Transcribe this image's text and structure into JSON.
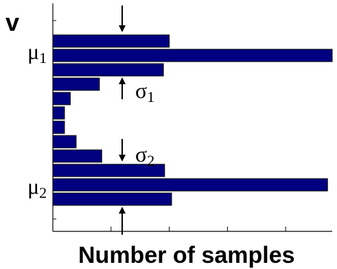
{
  "chart_data": {
    "type": "bar",
    "orientation": "horizontal",
    "ylabel": "v",
    "xlabel": "Number of samples",
    "grid": false,
    "legend": "none",
    "bar_color": "#000080",
    "xlim": [
      0,
      24
    ],
    "x_ticks": [
      5,
      10,
      15,
      20
    ],
    "values": [
      10,
      24,
      9.5,
      4,
      1.5,
      1,
      1,
      2,
      4.2,
      9.6,
      23.6,
      10.2
    ],
    "annotations": [
      {
        "symbol": "μ",
        "sub": "1",
        "at_bar": 1,
        "kind": "label"
      },
      {
        "symbol": "σ",
        "sub": "1",
        "at_bar": 2,
        "kind": "label"
      },
      {
        "symbol": "σ",
        "sub": "2",
        "at_bar": 9,
        "kind": "label"
      },
      {
        "symbol": "μ",
        "sub": "2",
        "at_bar": 10,
        "kind": "label"
      }
    ]
  }
}
